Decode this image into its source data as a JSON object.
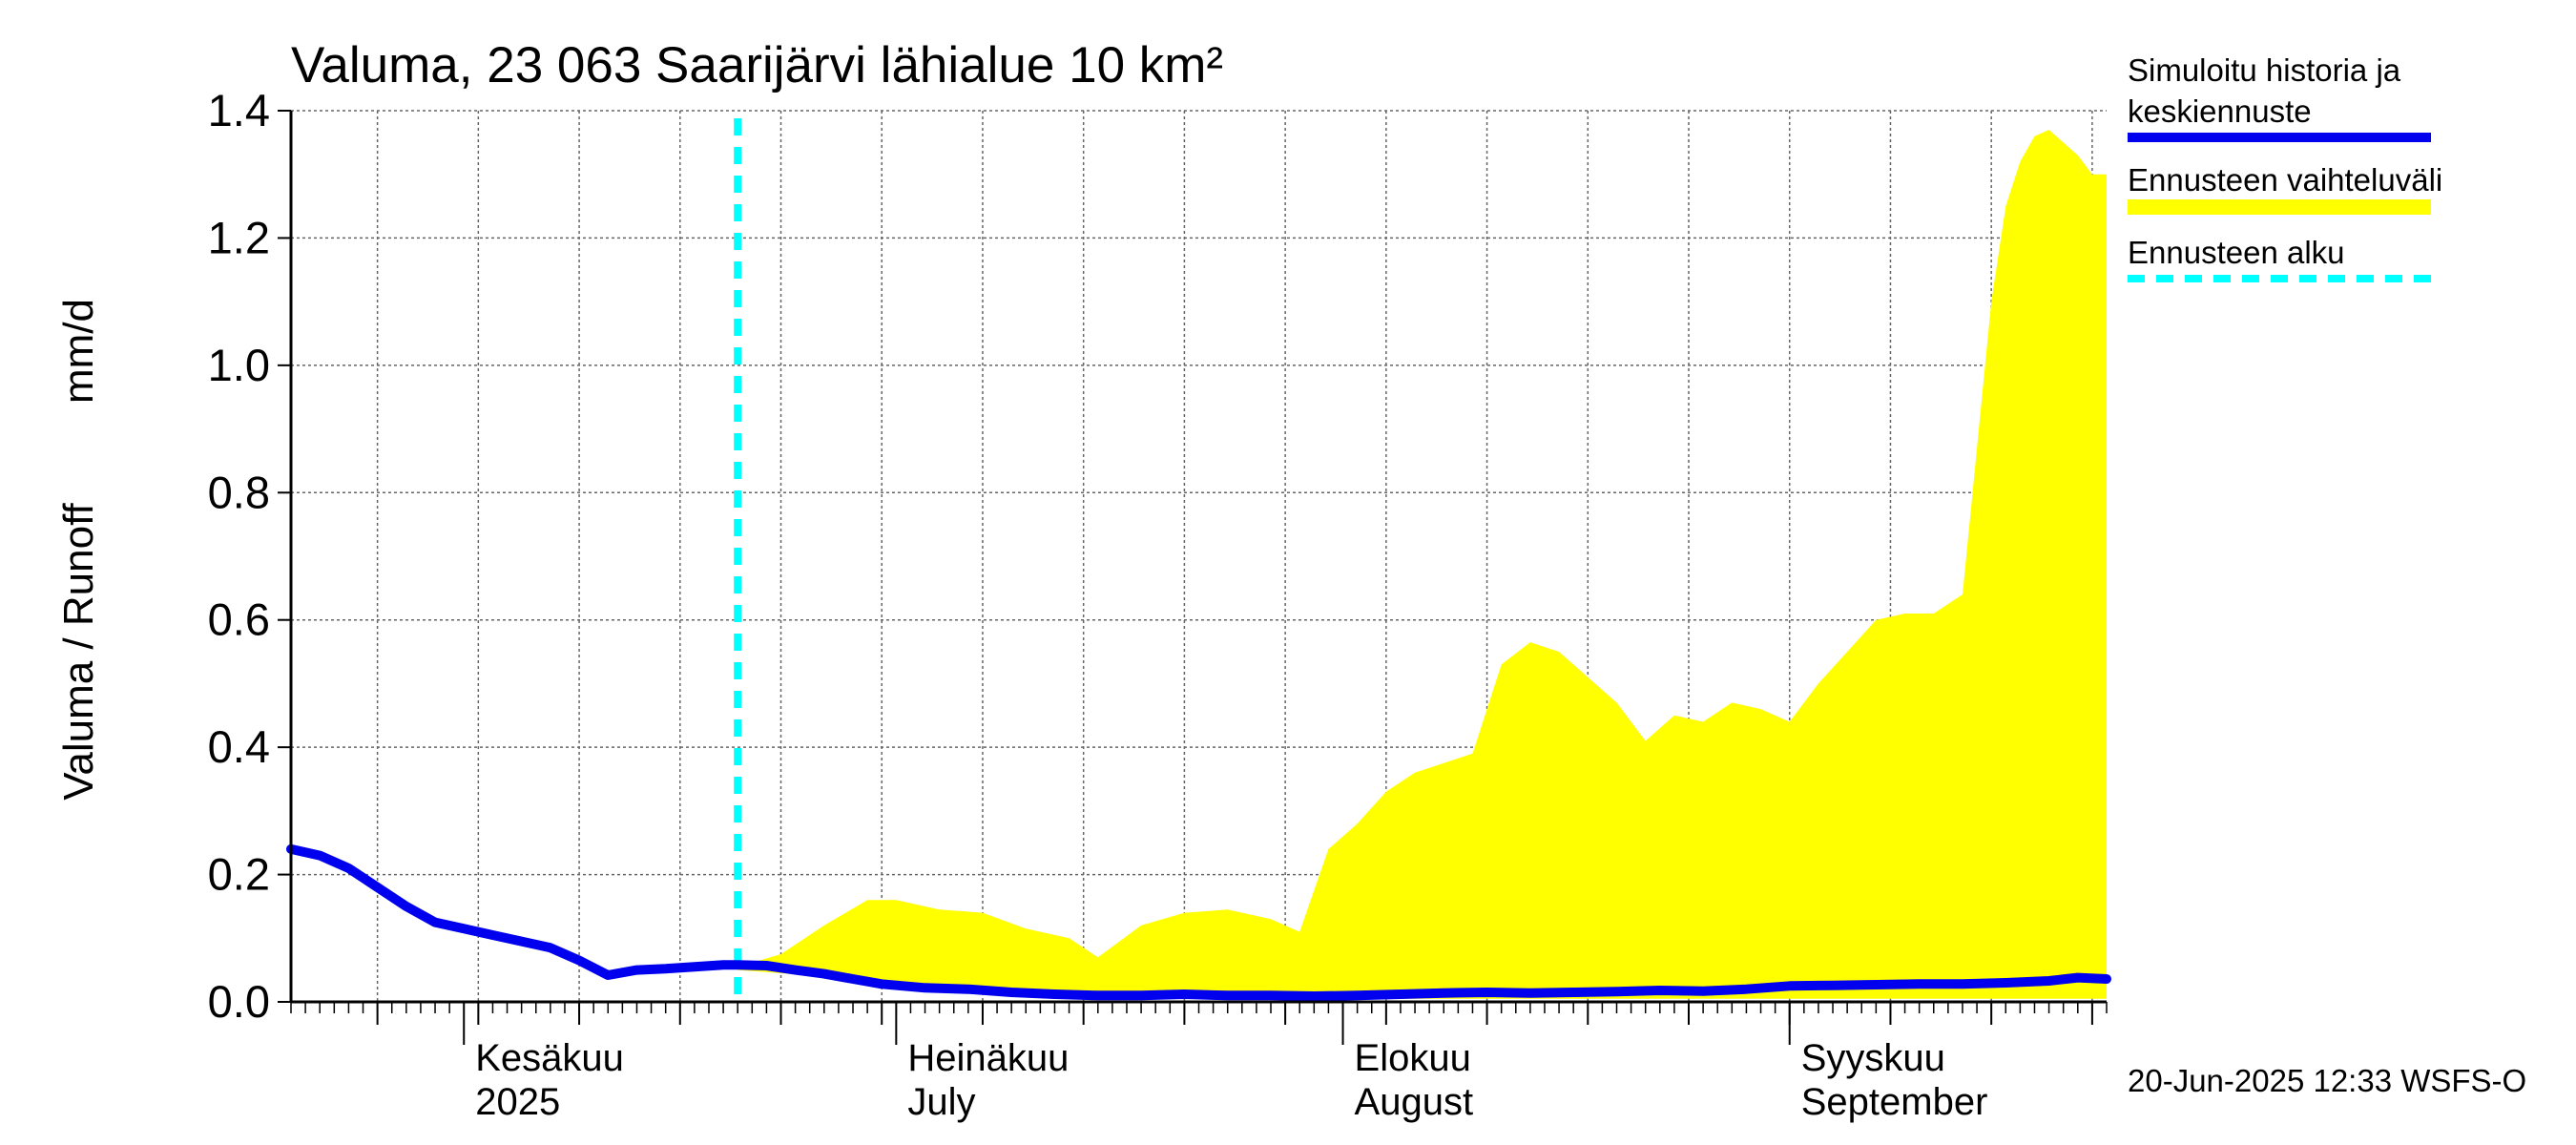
{
  "chart_data": {
    "type": "area",
    "title": "Valuma, 23 063 Saarijärvi lähialue 10 km²",
    "ylabel_left": "Valuma / Runoff",
    "ylabel_right": "mm/d",
    "ylim": [
      0,
      1.4
    ],
    "y_ticks": [
      "0.0",
      "0.2",
      "0.4",
      "0.6",
      "0.8",
      "1.0",
      "1.2",
      "1.4"
    ],
    "y_tick_values": [
      0,
      0.2,
      0.4,
      0.6,
      0.8,
      1.0,
      1.2,
      1.4
    ],
    "x_range": [
      "2025-05-20",
      "2025-09-23"
    ],
    "month_labels": [
      {
        "line1": "Kesäkuu",
        "line2": "2025",
        "date": "2025-06-01"
      },
      {
        "line1": "Heinäkuu",
        "line2": "July",
        "date": "2025-07-01"
      },
      {
        "line1": "Elokuu",
        "line2": "August",
        "date": "2025-08-01"
      },
      {
        "line1": "Syyskuu",
        "line2": "September",
        "date": "2025-09-01"
      }
    ],
    "forecast_start": "2025-06-20",
    "grid": true,
    "legend_position": "right",
    "colors": {
      "history": "#0000ee",
      "range": "#ffff00",
      "forecast_start": "#00ffff",
      "grid": "#666666"
    },
    "series": [
      {
        "name": "Simuloitu historia ja keskiennuste",
        "type": "line",
        "x": [
          "2025-05-20",
          "2025-05-22",
          "2025-05-24",
          "2025-05-26",
          "2025-05-28",
          "2025-05-30",
          "2025-06-01",
          "2025-06-03",
          "2025-06-05",
          "2025-06-07",
          "2025-06-09",
          "2025-06-11",
          "2025-06-13",
          "2025-06-15",
          "2025-06-17",
          "2025-06-19",
          "2025-06-20",
          "2025-06-22",
          "2025-06-24",
          "2025-06-26",
          "2025-06-28",
          "2025-06-30",
          "2025-07-03",
          "2025-07-06",
          "2025-07-09",
          "2025-07-12",
          "2025-07-15",
          "2025-07-18",
          "2025-07-21",
          "2025-07-24",
          "2025-07-27",
          "2025-07-30",
          "2025-08-02",
          "2025-08-05",
          "2025-08-08",
          "2025-08-11",
          "2025-08-14",
          "2025-08-17",
          "2025-08-20",
          "2025-08-23",
          "2025-08-26",
          "2025-08-29",
          "2025-09-01",
          "2025-09-04",
          "2025-09-07",
          "2025-09-10",
          "2025-09-13",
          "2025-09-16",
          "2025-09-19",
          "2025-09-21",
          "2025-09-23"
        ],
        "values": [
          0.24,
          0.23,
          0.21,
          0.18,
          0.15,
          0.125,
          0.115,
          0.105,
          0.095,
          0.085,
          0.065,
          0.042,
          0.05,
          0.052,
          0.055,
          0.058,
          0.058,
          0.057,
          0.05,
          0.044,
          0.036,
          0.028,
          0.022,
          0.02,
          0.015,
          0.012,
          0.01,
          0.01,
          0.012,
          0.01,
          0.01,
          0.009,
          0.01,
          0.012,
          0.014,
          0.015,
          0.014,
          0.015,
          0.016,
          0.018,
          0.017,
          0.02,
          0.025,
          0.026,
          0.027,
          0.028,
          0.028,
          0.03,
          0.033,
          0.038,
          0.036
        ]
      },
      {
        "name": "Ennusteen vaihteluväli",
        "type": "band",
        "x": [
          "2025-06-20",
          "2025-06-23",
          "2025-06-26",
          "2025-06-29",
          "2025-07-01",
          "2025-07-04",
          "2025-07-07",
          "2025-07-10",
          "2025-07-13",
          "2025-07-15",
          "2025-07-18",
          "2025-07-21",
          "2025-07-24",
          "2025-07-27",
          "2025-07-29",
          "2025-07-31",
          "2025-08-02",
          "2025-08-04",
          "2025-08-06",
          "2025-08-08",
          "2025-08-10",
          "2025-08-12",
          "2025-08-14",
          "2025-08-16",
          "2025-08-18",
          "2025-08-20",
          "2025-08-22",
          "2025-08-24",
          "2025-08-26",
          "2025-08-28",
          "2025-08-30",
          "2025-09-01",
          "2025-09-03",
          "2025-09-05",
          "2025-09-07",
          "2025-09-09",
          "2025-09-11",
          "2025-09-13",
          "2025-09-15",
          "2025-09-16",
          "2025-09-17",
          "2025-09-18",
          "2025-09-19",
          "2025-09-20",
          "2025-09-21",
          "2025-09-22",
          "2025-09-23"
        ],
        "upper": [
          0.055,
          0.075,
          0.12,
          0.16,
          0.16,
          0.145,
          0.14,
          0.115,
          0.1,
          0.07,
          0.12,
          0.14,
          0.145,
          0.13,
          0.11,
          0.24,
          0.28,
          0.33,
          0.36,
          0.375,
          0.39,
          0.53,
          0.565,
          0.55,
          0.51,
          0.47,
          0.41,
          0.45,
          0.44,
          0.47,
          0.46,
          0.44,
          0.5,
          0.55,
          0.6,
          0.61,
          0.61,
          0.64,
          1.1,
          1.25,
          1.32,
          1.36,
          1.37,
          1.35,
          1.33,
          1.3,
          1.3
        ],
        "lower": [
          0.05,
          0.045,
          0.04,
          0.035,
          0.03,
          0.025,
          0.02,
          0.015,
          0.012,
          0.01,
          0.008,
          0.007,
          0.006,
          0.006,
          0.005,
          0.005,
          0.005,
          0.005,
          0.005,
          0.005,
          0.005,
          0.005,
          0.005,
          0.005,
          0.005,
          0.005,
          0.005,
          0.005,
          0.005,
          0.005,
          0.005,
          0.005,
          0.005,
          0.005,
          0.005,
          0.005,
          0.005,
          0.005,
          0.005,
          0.005,
          0.005,
          0.005,
          0.005,
          0.005,
          0.005,
          0.005,
          0.005
        ]
      },
      {
        "name": "Ennusteen alku",
        "type": "vline",
        "x": "2025-06-20"
      }
    ]
  },
  "legend": [
    {
      "line1": "Simuloitu historia ja",
      "line2": "keskiennuste",
      "key": "history"
    },
    {
      "line1": "Ennusteen vaihteluväli",
      "line2": "",
      "key": "range"
    },
    {
      "line1": "Ennusteen alku",
      "line2": "",
      "key": "forecast_start"
    }
  ],
  "footer": "20-Jun-2025 12:33 WSFS-O"
}
